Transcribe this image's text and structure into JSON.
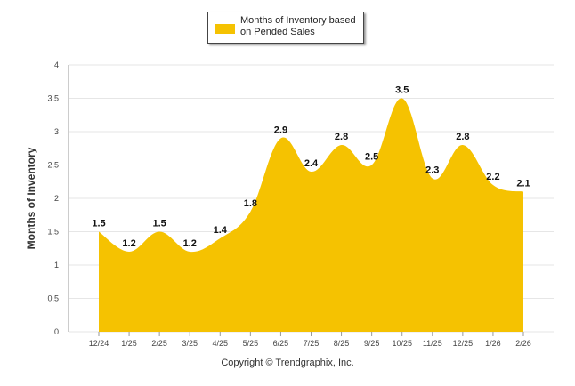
{
  "chart_data": {
    "type": "area",
    "title": "",
    "xlabel": "",
    "ylabel": "Months of Inventory",
    "categories": [
      "12/24",
      "1/25",
      "2/25",
      "3/25",
      "4/25",
      "5/25",
      "6/25",
      "7/25",
      "8/25",
      "9/25",
      "10/25",
      "11/25",
      "12/25",
      "1/26",
      "2/26"
    ],
    "series": [
      {
        "name": "Months of Inventory based on Pended Sales",
        "values": [
          1.5,
          1.2,
          1.5,
          1.2,
          1.4,
          1.8,
          2.9,
          2.4,
          2.8,
          2.5,
          3.5,
          2.3,
          2.8,
          2.2,
          2.1
        ],
        "labels": [
          "1.5",
          "1.2",
          "1.5",
          "1.2",
          "1.4",
          "1.8",
          "2.9",
          "2.4",
          "2.8",
          "2.5",
          "3.5",
          "2.3",
          "2.8",
          "2.2",
          "2.1"
        ]
      }
    ],
    "ylim": [
      0,
      4
    ],
    "yticks": [
      0,
      0.5,
      1,
      1.5,
      2,
      2.5,
      3,
      3.5,
      4
    ],
    "ytick_labels": [
      "0",
      "0.5",
      "1",
      "1.5",
      "2",
      "2.5",
      "3",
      "3.5",
      "4"
    ],
    "grid": true,
    "legend": {
      "position": "top-center",
      "label_line1": "Months of Inventory based",
      "label_line2": "on Pended Sales"
    },
    "color": "#f5c201"
  },
  "footer": {
    "copyright": "Copyright © Trendgraphix, Inc."
  }
}
